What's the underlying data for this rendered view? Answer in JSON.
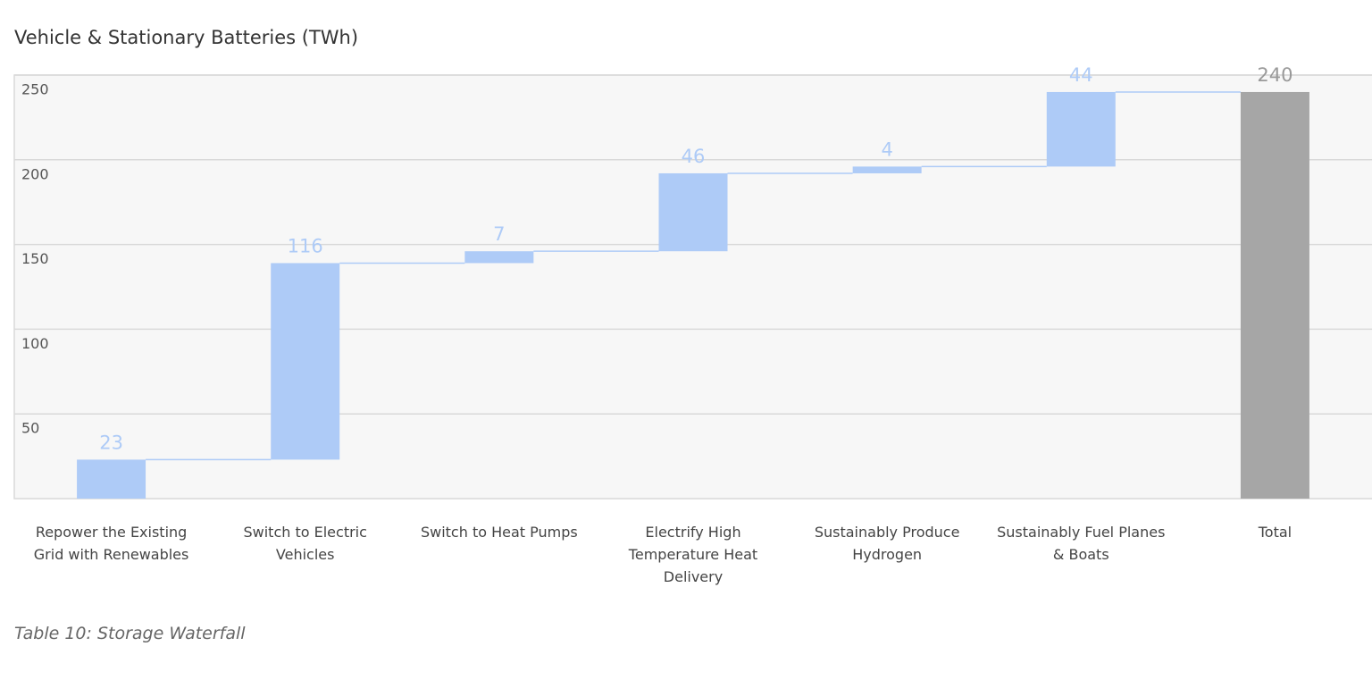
{
  "chart_data": {
    "type": "waterfall",
    "title": "Vehicle & Stationary Batteries (TWh)",
    "caption": "Table 10: Storage Waterfall",
    "categories": [
      "Repower the Existing Grid with Renewables",
      "Switch to Electric Vehicles",
      "Switch to Heat Pumps",
      "Electrify High Temperature Heat Delivery",
      "Sustainably Produce Hydrogen",
      "Sustainably Fuel Planes & Boats",
      "Total"
    ],
    "values": [
      23,
      116,
      7,
      46,
      4,
      44,
      240
    ],
    "color": "#aecbf7",
    "total_color": "#a6a6a6",
    "ylim": [
      0,
      250
    ],
    "yticks": [
      50,
      100,
      150,
      200,
      250
    ],
    "grid": true
  }
}
